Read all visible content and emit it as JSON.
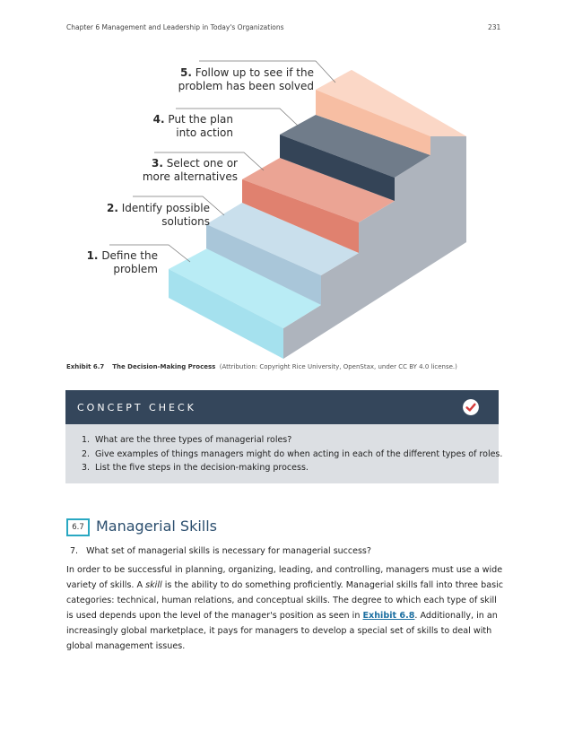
{
  "header": {
    "chapter": "Chapter 6 Management and Leadership in Today's Organizations",
    "page_number": "231"
  },
  "figure": {
    "steps": [
      {
        "num": "1.",
        "line1": "Define the",
        "line2": "problem"
      },
      {
        "num": "2.",
        "line1": "Identify possible",
        "line2": "solutions"
      },
      {
        "num": "3.",
        "line1": "Select one or",
        "line2": "more alternatives"
      },
      {
        "num": "4.",
        "line1": "Put the plan",
        "line2": "into action"
      },
      {
        "num": "5.",
        "line1": "Follow up to see if the",
        "line2": "problem has been solved"
      }
    ],
    "colors": {
      "step1": "#b9ecf5",
      "step2": "#bcd6e6",
      "step3": "#eba494",
      "step4": "#707c8a",
      "step5": "#fbd2bf",
      "side": "#aeb4bd"
    },
    "caption_label": "Exhibit 6.7",
    "caption_title": "The Decision-Making Process",
    "caption_attribution": "(Attribution: Copyright Rice University, OpenStax, under CC BY 4.0 license.)"
  },
  "concept_check": {
    "title": "CONCEPT CHECK",
    "icon": "checkmark-icon",
    "items": [
      {
        "num": "1.",
        "text": "What are the three types of managerial roles?"
      },
      {
        "num": "2.",
        "text": "Give examples of things managers might do when acting in each of the different types of roles."
      },
      {
        "num": "3.",
        "text": "List the five steps in the decision-making process."
      }
    ]
  },
  "section": {
    "number": "6.7",
    "title": "Managerial Skills",
    "objective_num": "7.",
    "objective_text": "What set of managerial skills is necessary for managerial success?",
    "body_1": "In order to be successful in planning, organizing, leading, and controlling, managers must use a wide variety of skills. A ",
    "body_skill": "skill",
    "body_2": " is the ability to do something proficiently. Managerial skills fall into three basic categories: technical, human relations, and conceptual skills. The degree to which each type of skill is used depends upon the level of the manager's position as seen in ",
    "body_link": "Exhibit 6.8",
    "body_3": ". Additionally, in an increasingly global marketplace, it pays for managers to develop a special set of skills to deal with global management issues."
  }
}
